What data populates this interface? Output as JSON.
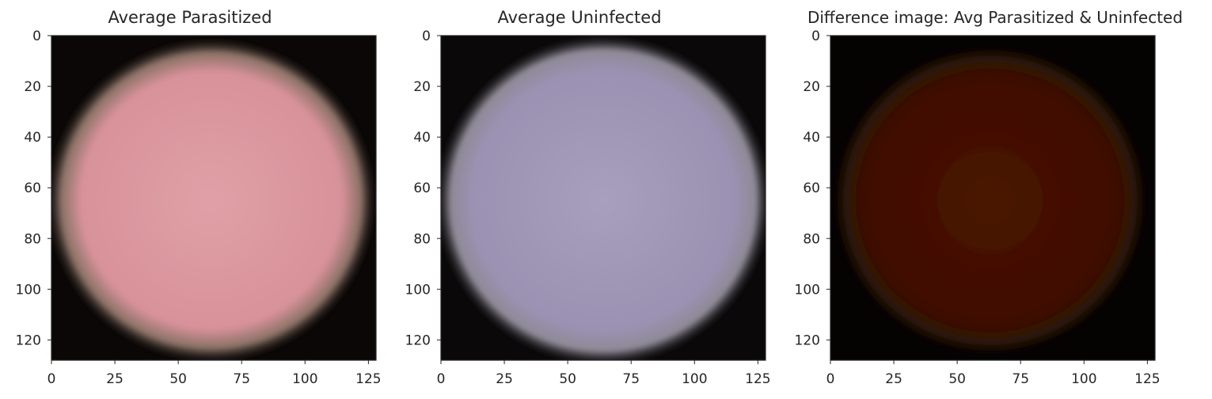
{
  "chart_data": [
    {
      "type": "heatmap",
      "title": "Average Parasitized",
      "xlim": [
        0,
        128
      ],
      "ylim": [
        0,
        128
      ],
      "xticks": [
        0,
        25,
        50,
        75,
        100,
        125
      ],
      "yticks": [
        0,
        20,
        40,
        60,
        80,
        100,
        120
      ],
      "grid": false,
      "colors": {
        "background": "#0a0706",
        "halo": "#8a7266",
        "disk": "#d8929a",
        "disk_light": "#e0a0a6"
      },
      "disk": {
        "cx": 63,
        "cy": 65,
        "rx": 62,
        "ry": 61
      }
    },
    {
      "type": "heatmap",
      "title": "Average Uninfected",
      "xlim": [
        0,
        128
      ],
      "ylim": [
        0,
        128
      ],
      "xticks": [
        0,
        25,
        50,
        75,
        100,
        125
      ],
      "yticks": [
        0,
        20,
        40,
        60,
        80,
        100,
        120
      ],
      "grid": false,
      "colors": {
        "background": "#0a0809",
        "halo": "#8e8a96",
        "disk": "#9b91b2",
        "disk_light": "#a89ebd"
      },
      "disk": {
        "cx": 64,
        "cy": 65,
        "rx": 63,
        "ry": 62
      }
    },
    {
      "type": "heatmap",
      "title": "Difference image: Avg Parasitized & Uninfected",
      "xlim": [
        0,
        128
      ],
      "ylim": [
        0,
        128
      ],
      "xticks": [
        0,
        25,
        50,
        75,
        100,
        125
      ],
      "yticks": [
        0,
        20,
        40,
        60,
        80,
        100,
        120
      ],
      "grid": false,
      "colors": {
        "background": "#050202",
        "halo": "#2a1608",
        "disk": "#3e0e02",
        "disk_light": "#4a1404"
      },
      "disk": {
        "cx": 63,
        "cy": 65,
        "rx": 60,
        "ry": 59
      }
    }
  ]
}
